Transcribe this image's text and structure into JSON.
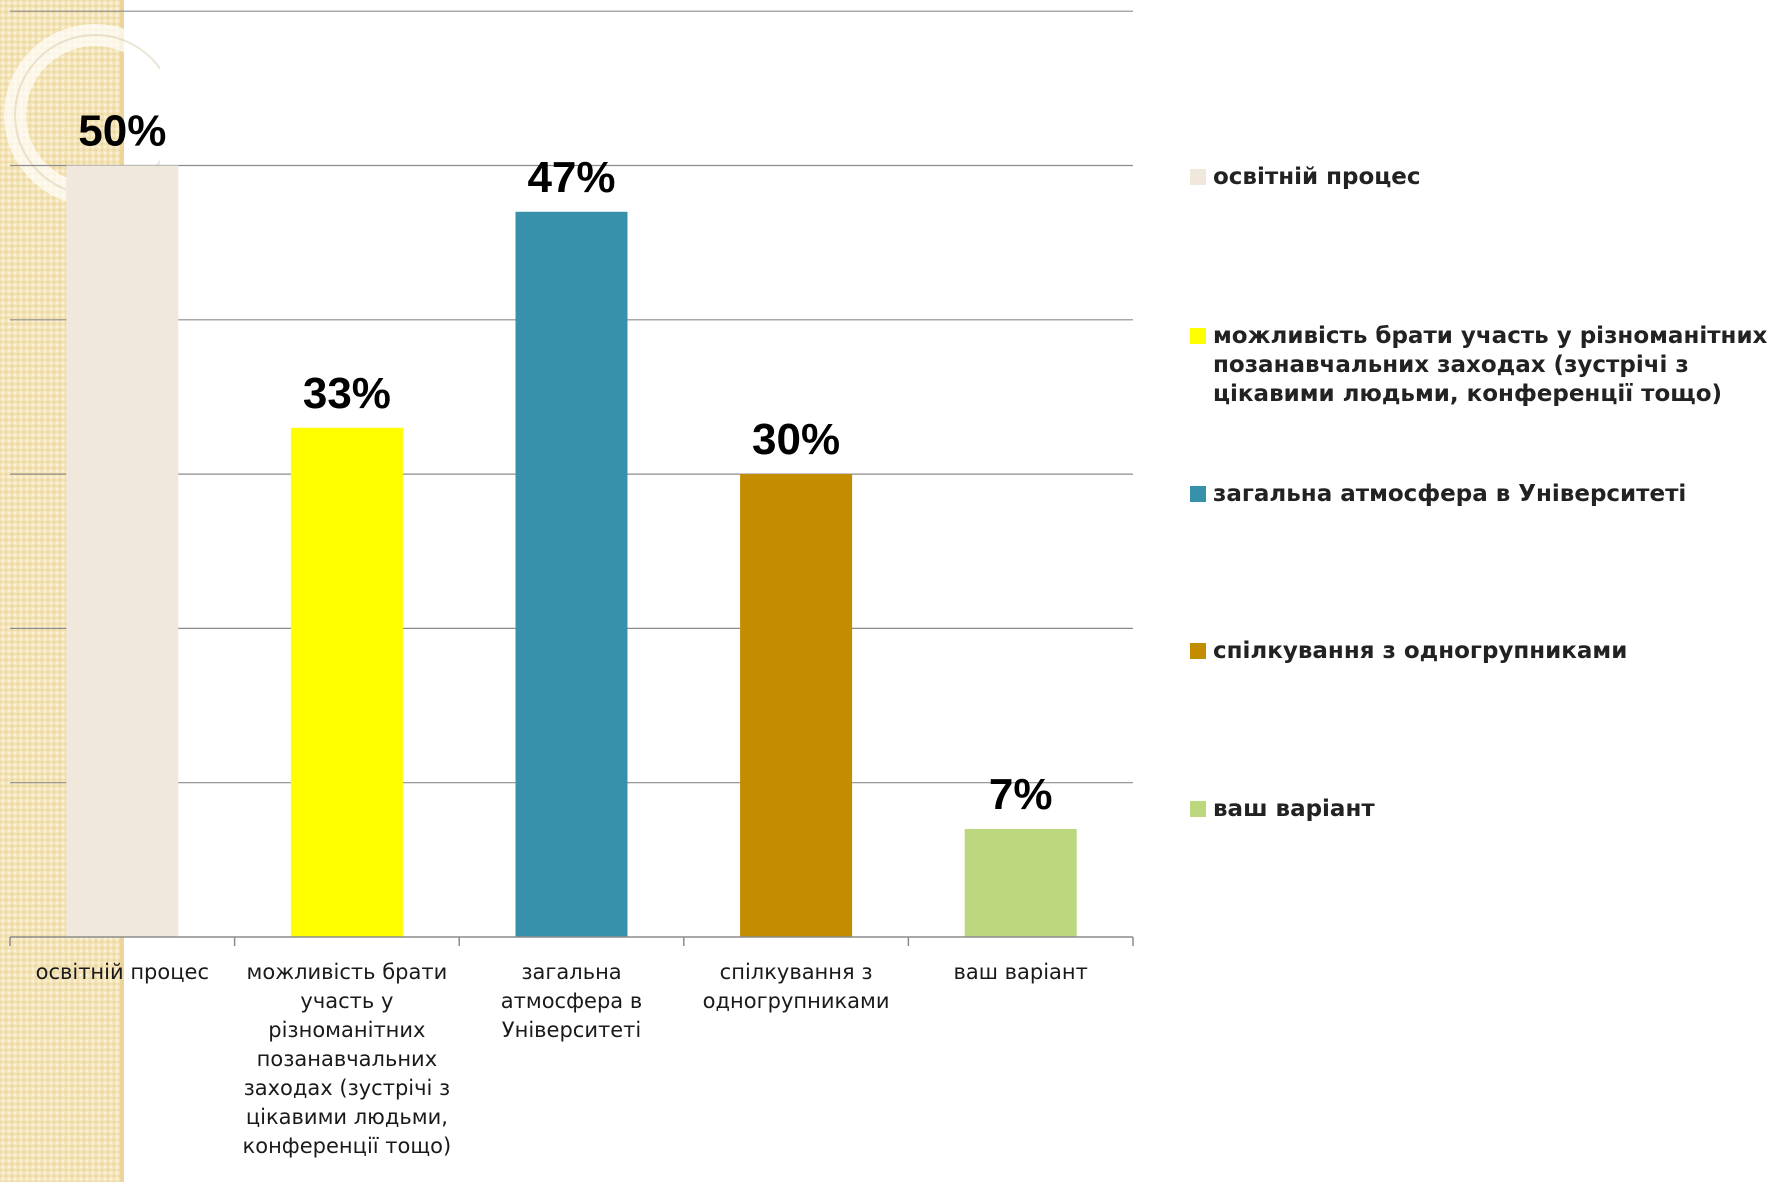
{
  "chart_data": {
    "type": "bar",
    "categories": [
      "освітній процес",
      "можливість брати участь у різноманітних позанавчальних заходах (зустрічі з цікавими людьми, конференції тощо)",
      "загальна атмосфера в Університеті",
      "спілкування з одногрупниками",
      "ваш варіант"
    ],
    "category_labels": [
      [
        "освітній процес"
      ],
      [
        "можливість брати",
        "участь у",
        "різноманітних",
        "позанавчальних",
        "заходах (зустрічі з",
        "цікавими людьми,",
        "конференції тощо)"
      ],
      [
        "загальна",
        "атмосфера в",
        "Університеті"
      ],
      [
        "спілкування з",
        "одногрупниками"
      ],
      [
        "ваш варіант"
      ]
    ],
    "values": [
      50,
      33,
      47,
      30,
      7
    ],
    "data_labels": [
      "50%",
      "33%",
      "47%",
      "30%",
      "7%"
    ],
    "colors": [
      "#f0e8dc",
      "#ffff00",
      "#3891aa",
      "#c48c00",
      "#bcd77d"
    ],
    "legend": {
      "placement": "right",
      "entries": [
        {
          "label": "освітній процес",
          "color": "#f0e8dc"
        },
        {
          "label": "можливість брати участь у різноманітних позанавчальних заходах (зустрічі з цікавими людьми, конференції тощо)",
          "color": "#ffff00"
        },
        {
          "label": "загальна атмосфера в Університеті",
          "color": "#3891aa"
        },
        {
          "label": "спілкування з одногрупниками",
          "color": "#c48c00"
        },
        {
          "label": "ваш варіант",
          "color": "#bcd77d"
        }
      ]
    },
    "ylim": [
      0,
      60
    ],
    "grid_step": 10,
    "grid": true,
    "title": "",
    "xlabel": "",
    "ylabel": ""
  }
}
